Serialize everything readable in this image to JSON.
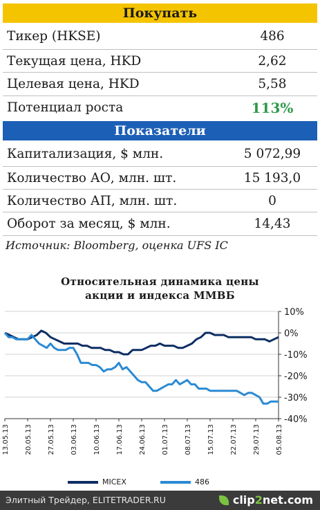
{
  "buy": {
    "header": "Покупать",
    "rows": [
      {
        "label": "Тикер (HKSE)",
        "value": "486"
      },
      {
        "label": "Текущая цена, HKD",
        "value": "2,62"
      },
      {
        "label": "Целевая цена, HKD",
        "value": "5,58"
      },
      {
        "label": "Потенциал роста",
        "value": "113%"
      }
    ]
  },
  "indicators": {
    "header": "Показатели",
    "rows": [
      {
        "label": "Капитализация, $ млн.",
        "value": "5 072,99"
      },
      {
        "label": "Количество АО, млн. шт.",
        "value": "15 193,0"
      },
      {
        "label": "Количество АП, млн. шт.",
        "value": "0"
      },
      {
        "label": "Оборот за месяц, $ млн.",
        "value": "14,43"
      }
    ]
  },
  "source": "Источник: Bloomberg, оценка UFS IC",
  "colors": {
    "micex": "#0d2e63",
    "s486": "#2a8ad4",
    "accent_green": "#2e9a4a",
    "band_buy": "#f5c400",
    "band_ind": "#1c5fb6"
  },
  "chart_data": {
    "type": "line",
    "title_lines": [
      "Относительная динамика цены",
      "акции и индекса ММВБ"
    ],
    "x_tick_labels": [
      "13.05.13",
      "20.05.13",
      "27.05.13",
      "03.06.13",
      "10.06.13",
      "17.06.13",
      "24.06.13",
      "01.07.13",
      "08.07.13",
      "15.07.13",
      "22.07.13",
      "29.07.13",
      "05.08.13"
    ],
    "ylim": [
      -40,
      10
    ],
    "y_ticks": [
      10,
      0,
      -10,
      -20,
      -30,
      -40
    ],
    "y_tick_labels": [
      "10%",
      "0%",
      "-10%",
      "-20%",
      "-30%",
      "-40%"
    ],
    "grid": "horizontal",
    "legend_position": "bottom",
    "series": [
      {
        "name": "MICEX",
        "values": [
          0,
          -1,
          -2,
          -3,
          -3,
          -3,
          -2,
          -1,
          1,
          0,
          -2,
          -3,
          -4,
          -5,
          -5,
          -5,
          -5,
          -6,
          -6,
          -7,
          -7,
          -7,
          -8,
          -8,
          -9,
          -9,
          -10,
          -10,
          -8,
          -8,
          -8,
          -7,
          -6,
          -6,
          -5,
          -6,
          -6,
          -6,
          -7,
          -7,
          -6,
          -5,
          -3,
          -2,
          0,
          0,
          -1,
          -1,
          -1,
          -2,
          -2,
          -2,
          -2,
          -2,
          -2,
          -3,
          -3,
          -3,
          -4,
          -3,
          -2
        ]
      },
      {
        "name": "486",
        "values": [
          0,
          -2,
          -2,
          -3,
          -3,
          -3,
          -3,
          -1,
          -3,
          -5,
          -6,
          -7,
          -5,
          -7,
          -8,
          -8,
          -8,
          -7,
          -7,
          -10,
          -14,
          -14,
          -14,
          -15,
          -15,
          -16,
          -18,
          -17,
          -17,
          -16,
          -14,
          -17,
          -16,
          -18,
          -20,
          -22,
          -23,
          -23,
          -25,
          -27,
          -27,
          -26,
          -25,
          -24,
          -24,
          -22,
          -24,
          -23,
          -22,
          -24,
          -24,
          -26,
          -26,
          -26,
          -27,
          -27,
          -27,
          -27,
          -27,
          -27,
          -27,
          -27,
          -28,
          -29,
          -28,
          -28,
          -29,
          -30,
          -33,
          -33,
          -32,
          -32,
          -32
        ]
      }
    ]
  },
  "footer": {
    "text": "Элитный Трейдер, ELITETRADER.RU",
    "brand_a": "clip",
    "brand_b": "2",
    "brand_c": "net.com"
  }
}
